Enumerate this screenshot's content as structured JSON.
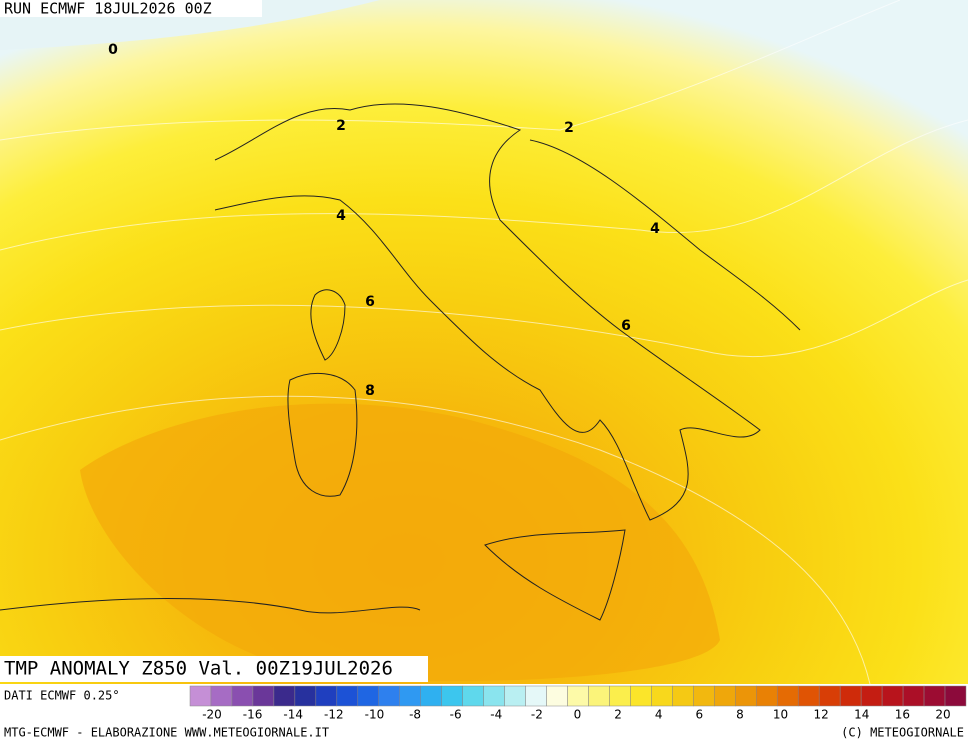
{
  "header": {
    "run": "RUN ECMWF 18JUL2026 00Z"
  },
  "map": {
    "contour_labels": [
      {
        "label": "0",
        "value": 0
      },
      {
        "label": "2",
        "value": 2
      },
      {
        "label": "2",
        "value": 2
      },
      {
        "label": "4",
        "value": 4
      },
      {
        "label": "4",
        "value": 4
      },
      {
        "label": "6",
        "value": 6
      },
      {
        "label": "6",
        "value": 6
      },
      {
        "label": "8",
        "value": 8
      }
    ]
  },
  "footer": {
    "title": "TMP ANOMALY Z850 Val. 00Z19JUL2026",
    "source": "DATI ECMWF 0.25°",
    "credit_left": "MTG-ECMWF - ELABORAZIONE WWW.METEOGIORNALE.IT",
    "credit_right": "(C) METEOGIORNALE"
  },
  "legend": {
    "ticks": [
      -20,
      -16,
      -14,
      -12,
      -10,
      -8,
      -6,
      -4,
      -2,
      0,
      2,
      4,
      6,
      8,
      10,
      12,
      14,
      16,
      20
    ],
    "colors": [
      "#c58fd6",
      "#a66cc4",
      "#8a4fb0",
      "#6a3799",
      "#3b2a8c",
      "#27319e",
      "#1f3fbf",
      "#1c52d6",
      "#1f66e3",
      "#2e80ee",
      "#2f99f2",
      "#2fb0f0",
      "#3cc6ee",
      "#5fd8ec",
      "#8ae4ee",
      "#b9eff2",
      "#e5f8f8",
      "#fdfde0",
      "#fdfaa8",
      "#fbf47a",
      "#fbee4c",
      "#fbe52a",
      "#f8d81c",
      "#f5c914",
      "#f2b80f",
      "#efa70b",
      "#ec9508",
      "#e98105",
      "#e56b04",
      "#e05404",
      "#d83e06",
      "#cf2b0a",
      "#c41d12",
      "#b8141c",
      "#ab0f27",
      "#9c0c32",
      "#8c0a3b"
    ]
  }
}
